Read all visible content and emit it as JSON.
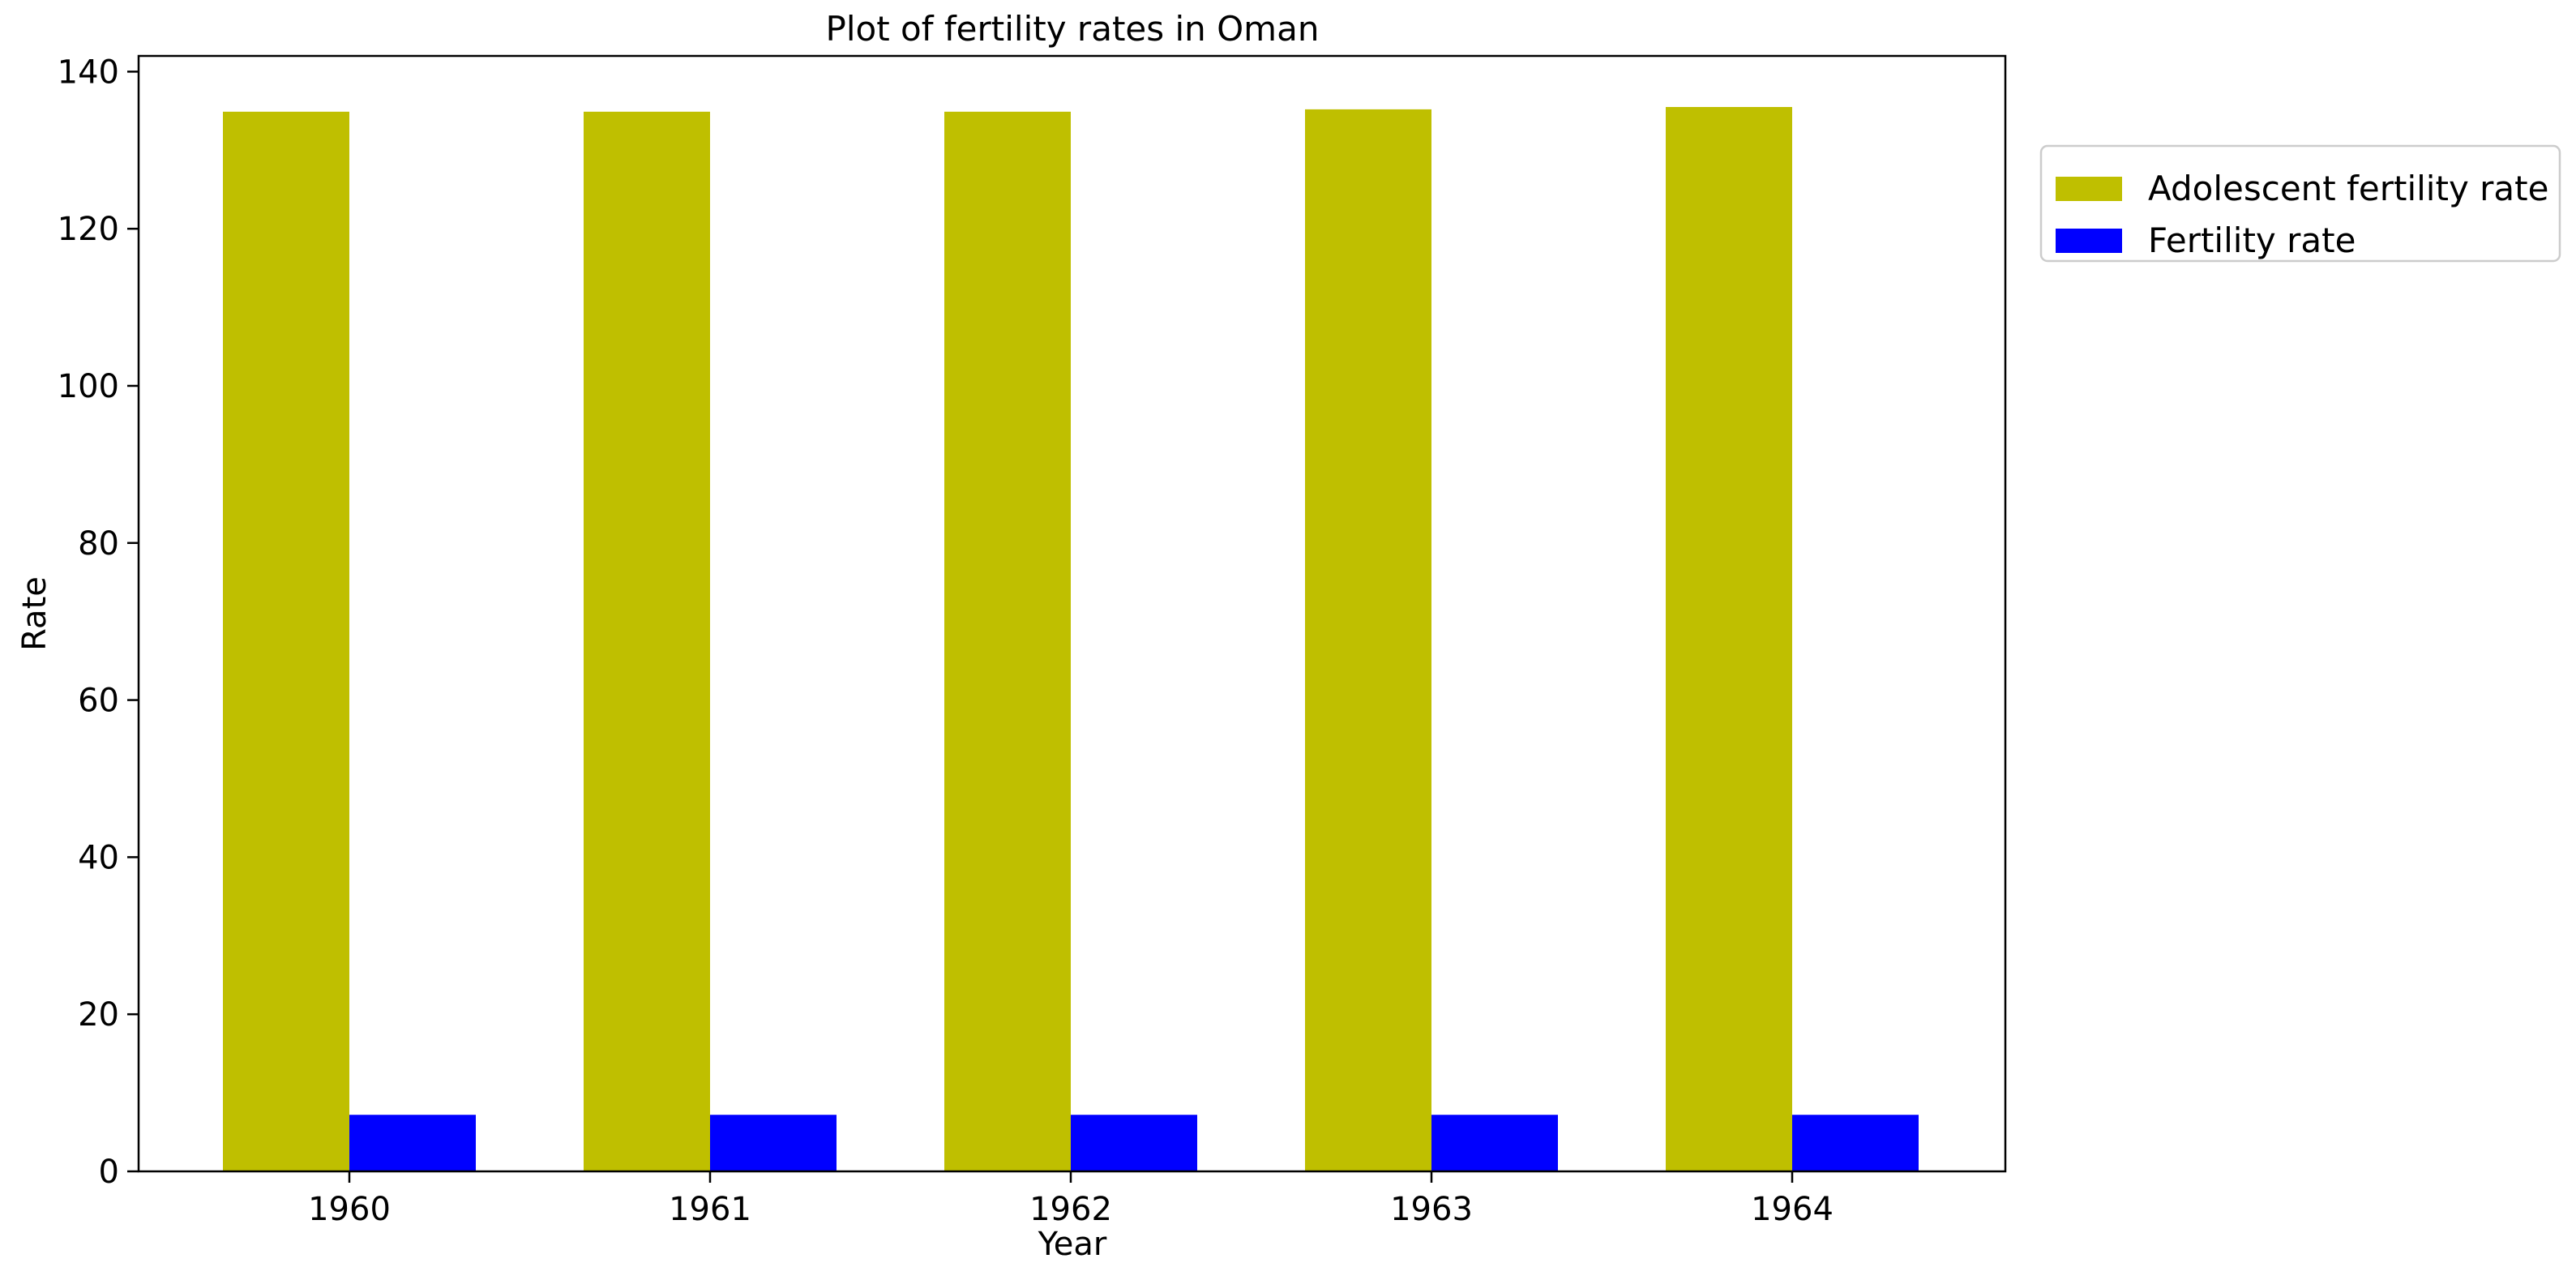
{
  "chart_data": {
    "type": "bar",
    "title": "Plot of fertility rates in Oman",
    "xlabel": "Year",
    "ylabel": "Rate",
    "categories": [
      "1960",
      "1961",
      "1962",
      "1963",
      "1964"
    ],
    "series": [
      {
        "name": "Adolescent fertility rate",
        "color": "#bfbf00",
        "values": [
          134.9,
          134.9,
          134.9,
          135.2,
          135.5
        ]
      },
      {
        "name": "Fertility rate",
        "color": "#0000ff",
        "values": [
          7.2,
          7.2,
          7.2,
          7.2,
          7.2
        ]
      }
    ],
    "ylim": [
      0,
      142
    ],
    "yticks": [
      0,
      20,
      40,
      60,
      80,
      100,
      120,
      140
    ],
    "grid": false,
    "legend_position": "outside-top-right"
  }
}
